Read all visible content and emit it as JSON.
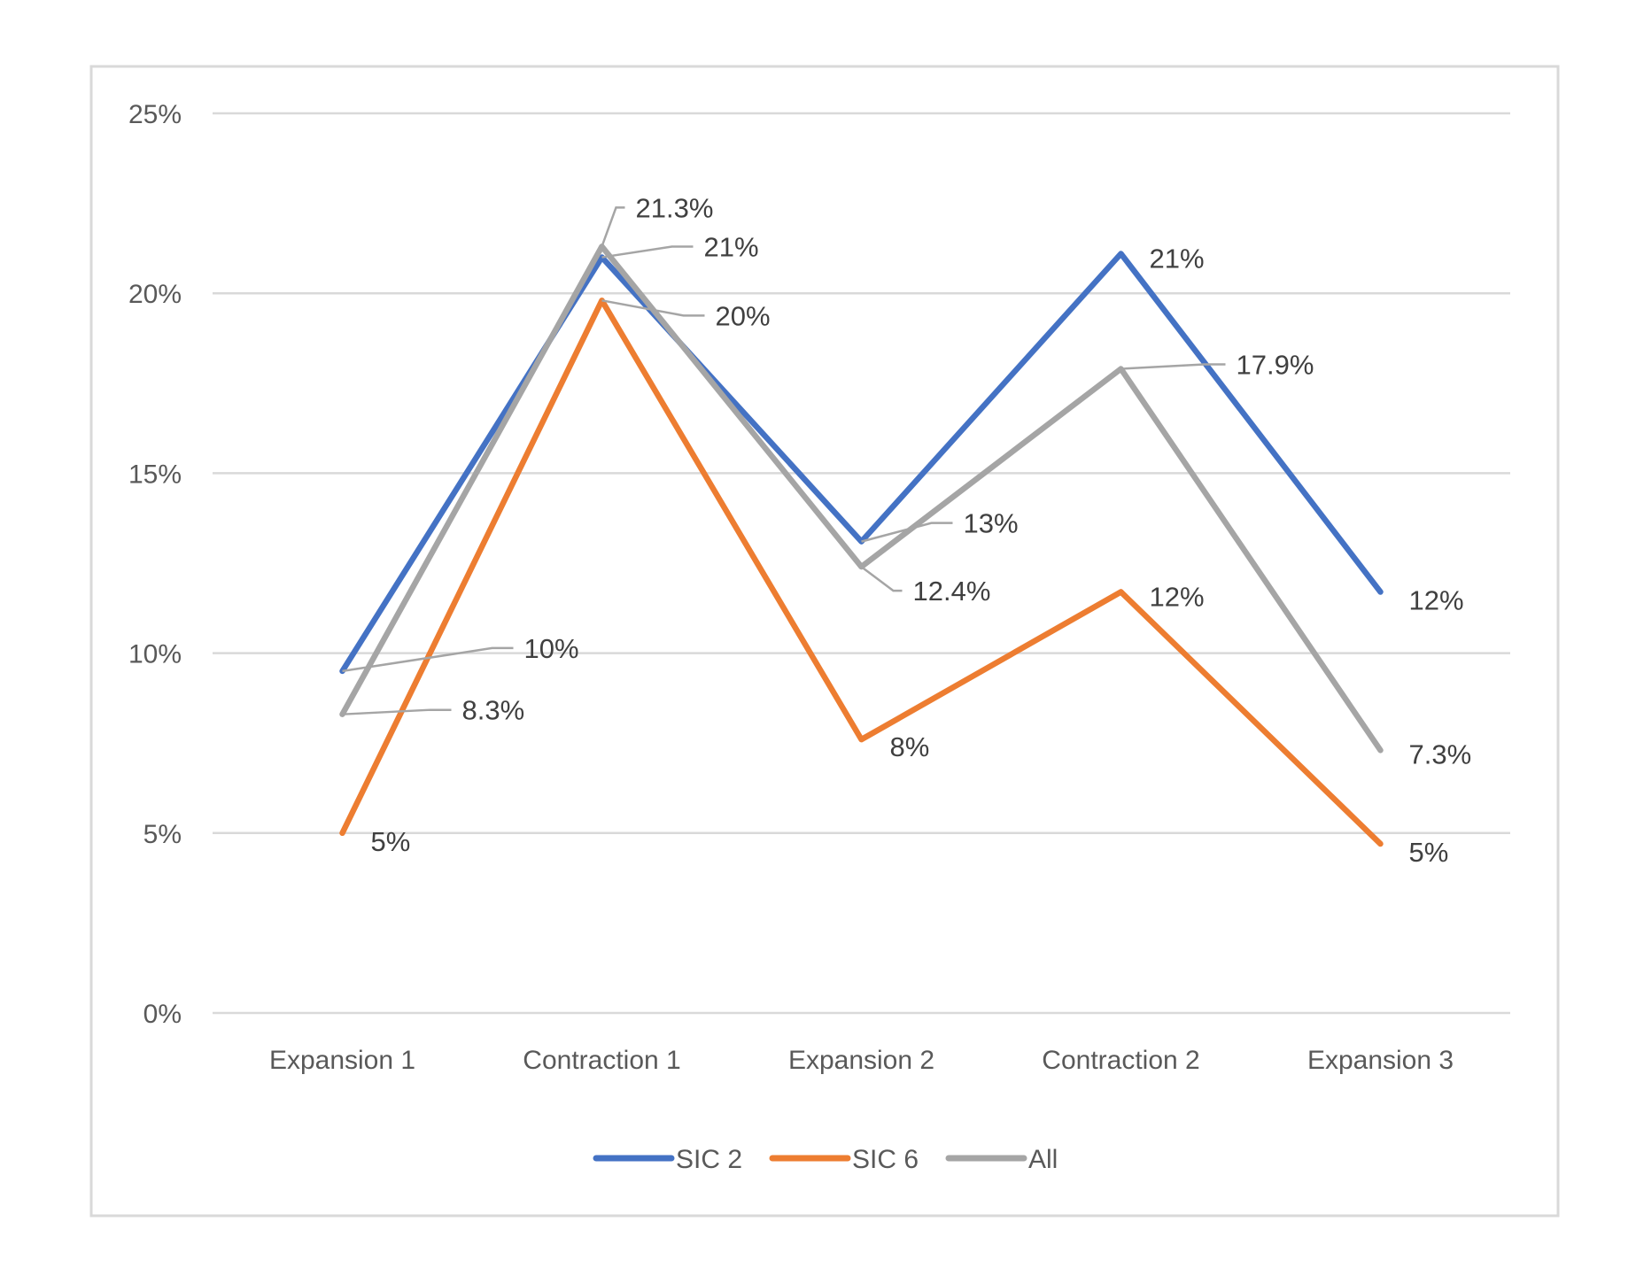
{
  "chart_data": {
    "type": "line",
    "categories": [
      "Expansion 1",
      "Contraction 1",
      "Expansion 2",
      "Contraction 2",
      "Expansion 3"
    ],
    "ylim": [
      0,
      25
    ],
    "yticks": [
      "0%",
      "5%",
      "10%",
      "15%",
      "20%",
      "25%"
    ],
    "grid": true,
    "legend_position": "bottom",
    "series": [
      {
        "name": "SIC 2",
        "color": "#4472c4",
        "values": [
          9.5,
          21,
          13.1,
          21.1,
          11.7
        ],
        "labels": [
          "10%",
          "21%",
          "13%",
          "21%",
          "12%"
        ]
      },
      {
        "name": "SIC 6",
        "color": "#ed7d31",
        "values": [
          5,
          19.8,
          7.6,
          11.7,
          4.7
        ],
        "labels": [
          "5%",
          "20%",
          "8%",
          "12%",
          "5%"
        ]
      },
      {
        "name": "All",
        "color": "#a5a5a5",
        "values": [
          8.3,
          21.3,
          12.4,
          17.9,
          7.3
        ],
        "labels": [
          "8.3%",
          "21.3%",
          "12.4%",
          "17.9%",
          "7.3%"
        ]
      }
    ]
  }
}
